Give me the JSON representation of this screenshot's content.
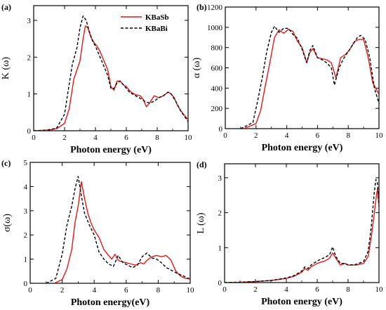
{
  "chart_data": [
    {
      "type": "line",
      "panel": "(a)",
      "xlabel": "Photon energy (eV)",
      "ylabel": "K (ω)",
      "xlim": [
        0,
        10
      ],
      "ylim": [
        0,
        3.4
      ],
      "xticks": [
        0,
        2,
        4,
        6,
        8,
        10
      ],
      "yticks": [
        0,
        1,
        2,
        3
      ],
      "legend": {
        "position": "top-right",
        "entries": [
          "KBaSb",
          "KBaBi"
        ]
      },
      "series": [
        {
          "name": "KBaSb",
          "color": "#e0191c",
          "dash": "solid",
          "x": [
            0,
            1,
            1.5,
            2,
            2.3,
            2.6,
            2.8,
            3.0,
            3.2,
            3.35,
            3.5,
            3.7,
            3.9,
            4.1,
            4.3,
            4.6,
            4.8,
            5.0,
            5.2,
            5.4,
            5.6,
            5.8,
            6.0,
            6.3,
            6.6,
            6.9,
            7.1,
            7.3,
            7.5,
            7.8,
            8.1,
            8.4,
            8.7,
            8.9,
            9.1,
            9.3,
            9.6,
            10
          ],
          "y": [
            0,
            0.02,
            0.06,
            0.2,
            0.6,
            1.4,
            1.65,
            1.9,
            2.5,
            2.85,
            2.8,
            2.55,
            2.4,
            2.3,
            2.15,
            1.85,
            1.65,
            1.2,
            1.1,
            1.35,
            1.35,
            1.25,
            1.2,
            1.05,
            0.98,
            0.95,
            0.85,
            0.65,
            0.75,
            0.95,
            0.9,
            0.95,
            1.05,
            1.0,
            0.9,
            0.7,
            0.5,
            0.3
          ]
        },
        {
          "name": "KBaBi",
          "color": "#000000",
          "dash": "dashed",
          "x": [
            0,
            1,
            1.5,
            2,
            2.2,
            2.5,
            2.8,
            3.0,
            3.2,
            3.4,
            3.6,
            3.8,
            4.0,
            4.3,
            4.6,
            4.8,
            5.0,
            5.2,
            5.4,
            5.6,
            5.9,
            6.2,
            6.6,
            6.9,
            7.2,
            7.5,
            7.8,
            8.1,
            8.4,
            8.7,
            8.9,
            9.2,
            9.5,
            10
          ],
          "y": [
            0,
            0.02,
            0.08,
            0.45,
            1.0,
            1.8,
            2.25,
            2.8,
            3.12,
            3.0,
            2.7,
            2.45,
            2.3,
            2.0,
            1.7,
            1.5,
            1.15,
            1.15,
            1.3,
            1.35,
            1.2,
            1.05,
            0.95,
            0.88,
            0.8,
            0.75,
            0.8,
            0.9,
            0.95,
            1.05,
            1.0,
            0.8,
            0.55,
            0.25
          ]
        }
      ]
    },
    {
      "type": "line",
      "panel": "(b)",
      "xlabel": "Photon energy (eV)",
      "ylabel": "α (ω)",
      "xlim": [
        0,
        10
      ],
      "ylim": [
        0,
        1200
      ],
      "xticks": [
        0,
        2,
        4,
        6,
        8,
        10
      ],
      "yticks": [
        0,
        200,
        400,
        600,
        800,
        1000,
        1200
      ],
      "series": [
        {
          "name": "KBaSb",
          "color": "#e0191c",
          "dash": "solid",
          "x": [
            1.2,
            2.0,
            2.3,
            2.6,
            2.9,
            3.2,
            3.5,
            3.8,
            4.1,
            4.4,
            4.7,
            5.0,
            5.3,
            5.5,
            5.7,
            6.0,
            6.3,
            6.6,
            6.9,
            7.2,
            7.5,
            7.8,
            8.1,
            8.4,
            8.7,
            9.0,
            9.3,
            9.6,
            10
          ],
          "y": [
            0,
            50,
            180,
            420,
            650,
            900,
            975,
            940,
            980,
            960,
            860,
            800,
            650,
            750,
            790,
            700,
            690,
            680,
            650,
            500,
            700,
            730,
            780,
            860,
            880,
            880,
            700,
            450,
            340
          ]
        },
        {
          "name": "KBaBi",
          "color": "#000000",
          "dash": "dashed",
          "x": [
            1.0,
            1.8,
            2.1,
            2.4,
            2.7,
            3.0,
            3.2,
            3.5,
            3.8,
            4.1,
            4.4,
            4.7,
            5.0,
            5.3,
            5.5,
            5.7,
            6.0,
            6.3,
            6.6,
            6.9,
            7.1,
            7.4,
            7.7,
            8.0,
            8.3,
            8.6,
            8.8,
            9.1,
            9.4,
            9.7,
            10
          ],
          "y": [
            0,
            60,
            270,
            500,
            760,
            950,
            1010,
            950,
            990,
            990,
            930,
            890,
            780,
            650,
            770,
            820,
            700,
            680,
            650,
            600,
            430,
            600,
            690,
            760,
            830,
            900,
            920,
            880,
            700,
            400,
            250
          ]
        }
      ]
    },
    {
      "type": "line",
      "panel": "(c)",
      "xlabel": "Photon energy(eV)",
      "ylabel": "σ(ω)",
      "xlim": [
        0,
        10
      ],
      "ylim": [
        0,
        5
      ],
      "xticks": [
        0,
        2,
        4,
        6,
        8,
        10
      ],
      "yticks": [
        0,
        1,
        2,
        3,
        4,
        5
      ],
      "series": [
        {
          "name": "KBaSb",
          "color": "#e0191c",
          "dash": "solid",
          "x": [
            1.5,
            2.0,
            2.3,
            2.6,
            2.8,
            3.0,
            3.2,
            3.4,
            3.6,
            3.8,
            4.0,
            4.3,
            4.6,
            4.9,
            5.1,
            5.3,
            5.5,
            5.7,
            6.0,
            6.3,
            6.6,
            6.9,
            7.1,
            7.3,
            7.6,
            7.9,
            8.2,
            8.5,
            8.8,
            9.1,
            9.4,
            9.7,
            10
          ],
          "y": [
            0,
            0.15,
            0.6,
            1.4,
            2.5,
            3.2,
            4.2,
            3.5,
            2.9,
            2.5,
            2.2,
            1.9,
            1.4,
            1.15,
            1.0,
            1.2,
            0.95,
            0.9,
            0.85,
            0.8,
            0.75,
            0.85,
            0.8,
            0.95,
            1.1,
            1.15,
            1.1,
            1.15,
            0.95,
            0.5,
            0.3,
            0.2,
            0.2
          ]
        },
        {
          "name": "KBaBi",
          "color": "#000000",
          "dash": "dashed",
          "x": [
            1.0,
            1.6,
            2.0,
            2.3,
            2.6,
            2.8,
            3.0,
            3.2,
            3.4,
            3.7,
            4.0,
            4.3,
            4.6,
            4.9,
            5.2,
            5.5,
            5.8,
            6.1,
            6.4,
            6.7,
            7.0,
            7.3,
            7.6,
            7.9,
            8.2,
            8.5,
            8.8,
            9.2,
            9.6,
            10
          ],
          "y": [
            0,
            0.2,
            1.2,
            2.4,
            3.2,
            3.9,
            4.42,
            3.6,
            2.9,
            2.4,
            2.0,
            1.3,
            1.0,
            0.8,
            0.7,
            1.15,
            0.85,
            0.75,
            0.65,
            0.75,
            1.1,
            1.25,
            1.05,
            1.0,
            0.85,
            0.65,
            0.55,
            0.4,
            0.3,
            0.15
          ]
        }
      ]
    },
    {
      "type": "line",
      "panel": "(d)",
      "xlabel": "Photon energy (eV)",
      "ylabel": "L (ω)",
      "xlim": [
        0,
        10
      ],
      "ylim": [
        0,
        3.4
      ],
      "xticks": [
        0,
        2,
        4,
        6,
        8,
        10
      ],
      "yticks": [
        0,
        1,
        2,
        3
      ],
      "series": [
        {
          "name": "KBaSb",
          "color": "#e0191c",
          "dash": "solid",
          "x": [
            0,
            1,
            2,
            3,
            4,
            4.5,
            5.0,
            5.2,
            5.4,
            5.6,
            6.0,
            6.5,
            6.8,
            7.0,
            7.2,
            7.5,
            7.8,
            8.0,
            8.5,
            9.0,
            9.3,
            9.5,
            9.7,
            9.85,
            9.92,
            10
          ],
          "y": [
            0,
            0.01,
            0.03,
            0.06,
            0.12,
            0.18,
            0.3,
            0.4,
            0.35,
            0.45,
            0.55,
            0.62,
            0.7,
            0.85,
            0.7,
            0.5,
            0.55,
            0.5,
            0.5,
            0.55,
            0.75,
            1.3,
            2.0,
            2.55,
            2.7,
            2.1
          ]
        },
        {
          "name": "KBaBi",
          "color": "#000000",
          "dash": "dashed",
          "x": [
            0,
            1,
            2,
            3,
            4,
            4.5,
            5.0,
            5.2,
            5.4,
            5.6,
            6.0,
            6.5,
            6.8,
            7.0,
            7.2,
            7.5,
            7.8,
            8.0,
            8.5,
            9.0,
            9.3,
            9.5,
            9.7,
            9.8,
            9.9,
            10
          ],
          "y": [
            0,
            0.01,
            0.03,
            0.06,
            0.13,
            0.2,
            0.33,
            0.45,
            0.4,
            0.5,
            0.62,
            0.72,
            0.8,
            1.02,
            0.75,
            0.55,
            0.55,
            0.5,
            0.52,
            0.6,
            0.9,
            1.6,
            2.6,
            2.95,
            2.85,
            2.2
          ]
        }
      ]
    }
  ]
}
